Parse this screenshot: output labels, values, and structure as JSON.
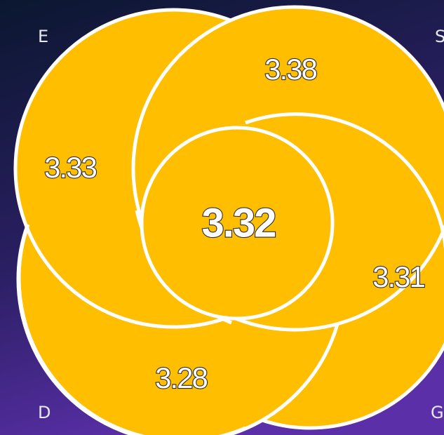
{
  "colors": {
    "petal_fill": "#ffbe00",
    "outline": "#ffffff",
    "background_top": "#0b1730",
    "background_bottom": "#5a2fa8"
  },
  "corners": {
    "top_left": "E",
    "top_right": "S",
    "bottom_left": "D",
    "bottom_right": "G"
  },
  "values": {
    "e": "3.33",
    "s": "3.38",
    "d": "3.28",
    "g": "3.31",
    "center": "3.32"
  }
}
